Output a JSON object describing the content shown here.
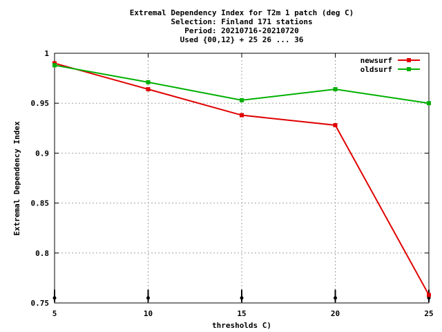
{
  "chart_data": {
    "type": "line",
    "title_lines": [
      "Extremal Dependency Index  for T2m 1 patch (deg C)",
      "Selection: Finland    171 stations",
      "Period: 20210716-20210720",
      "Used {00,12} + 25 26 ... 36"
    ],
    "xlabel": "thresholds C)",
    "ylabel": "Extremal Dependency Index",
    "x": [
      5,
      10,
      15,
      20,
      25
    ],
    "x_ticks": [
      "5",
      "10",
      "15",
      "20",
      "25"
    ],
    "y_ticks": [
      "0.75",
      "0.8",
      "0.85",
      "0.9",
      "0.95",
      "1"
    ],
    "xlim": [
      5,
      25
    ],
    "ylim": [
      0.75,
      1.0
    ],
    "grid": true,
    "legend_position": "top-right",
    "series": [
      {
        "name": "newsurf",
        "color": "#e00000",
        "values": [
          0.99,
          0.964,
          0.938,
          0.928,
          0.758
        ]
      },
      {
        "name": "oldsurf",
        "color": "#00b000",
        "values": [
          0.988,
          0.971,
          0.953,
          0.964,
          0.95
        ]
      }
    ],
    "markers": {
      "x": [
        5,
        10,
        15,
        20,
        25
      ],
      "y_at": 0.755
    }
  }
}
